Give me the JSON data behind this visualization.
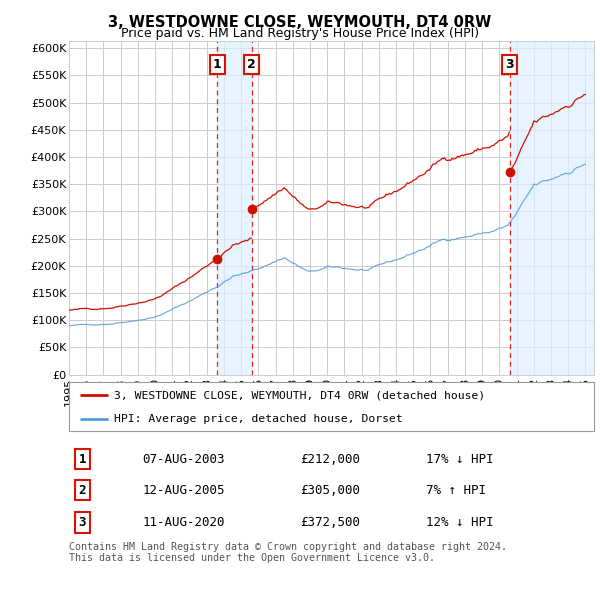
{
  "title": "3, WESTDOWNE CLOSE, WEYMOUTH, DT4 0RW",
  "subtitle": "Price paid vs. HM Land Registry's House Price Index (HPI)",
  "xlim_start": 1995.0,
  "xlim_end": 2025.5,
  "ylim": [
    0,
    612500
  ],
  "yticks": [
    0,
    50000,
    100000,
    150000,
    200000,
    250000,
    300000,
    350000,
    400000,
    450000,
    500000,
    550000,
    600000
  ],
  "ytick_labels": [
    "£0",
    "£50K",
    "£100K",
    "£150K",
    "£200K",
    "£250K",
    "£300K",
    "£350K",
    "£400K",
    "£450K",
    "£500K",
    "£550K",
    "£600K"
  ],
  "xticks": [
    1995,
    1996,
    1997,
    1998,
    1999,
    2000,
    2001,
    2002,
    2003,
    2004,
    2005,
    2006,
    2007,
    2008,
    2009,
    2010,
    2011,
    2012,
    2013,
    2014,
    2015,
    2016,
    2017,
    2018,
    2019,
    2020,
    2021,
    2022,
    2023,
    2024,
    2025
  ],
  "hpi_color": "#5599dd",
  "price_color": "#cc1100",
  "grid_color": "#cccccc",
  "bg_color": "#ffffff",
  "shade_color": "#ddeeff",
  "vline_color": "#dd1100",
  "sales": [
    {
      "num": 1,
      "date": "07-AUG-2003",
      "year": 2003.604,
      "price": 212000,
      "pct": "17%",
      "dir": "↓"
    },
    {
      "num": 2,
      "date": "12-AUG-2005",
      "year": 2005.604,
      "price": 305000,
      "pct": "7%",
      "dir": "↑"
    },
    {
      "num": 3,
      "date": "11-AUG-2020",
      "year": 2020.604,
      "price": 372500,
      "pct": "12%",
      "dir": "↓"
    }
  ],
  "legend_line1": "3, WESTDOWNE CLOSE, WEYMOUTH, DT4 0RW (detached house)",
  "legend_line2": "HPI: Average price, detached house, Dorset",
  "footnote": "Contains HM Land Registry data © Crown copyright and database right 2024.\nThis data is licensed under the Open Government Licence v3.0."
}
